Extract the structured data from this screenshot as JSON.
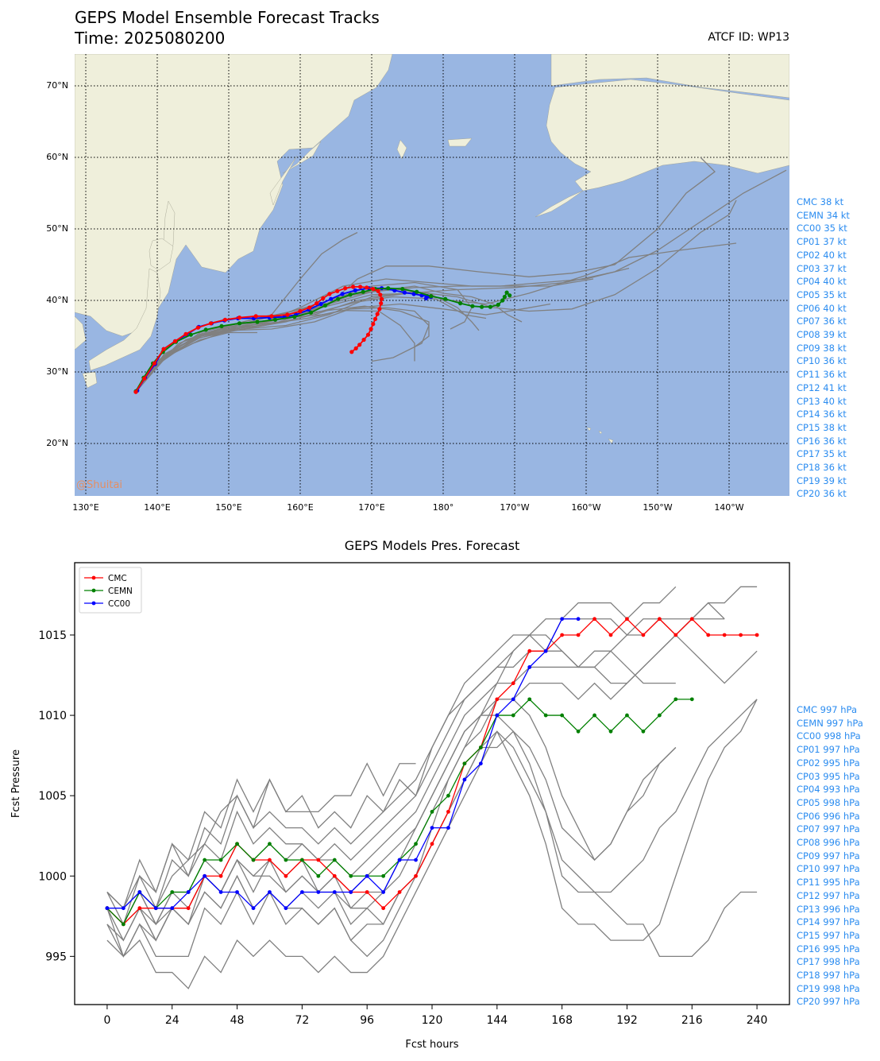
{
  "header": {
    "title": "GEPS Model Ensemble Forecast Tracks",
    "time": "Time: 2025080200",
    "atcf": "ATCF ID: WP13"
  },
  "map": {
    "watermark": "@Shuitai",
    "lat_labels": [
      "70°N",
      "60°N",
      "50°N",
      "40°N",
      "30°N",
      "20°N"
    ],
    "lon_labels": [
      "130°E",
      "140°E",
      "150°E",
      "160°E",
      "170°E",
      "180°",
      "170°W",
      "160°W",
      "150°W",
      "140°W"
    ],
    "colors": {
      "ocean": "#99b6e2",
      "land": "#efefdb",
      "cmc": "#ff0000",
      "cemn": "#008000",
      "cc00": "#0000ff",
      "member": "#808080"
    },
    "tracks": {
      "cmc": [
        [
          137,
          27.2
        ],
        [
          138.2,
          29.1
        ],
        [
          139.6,
          31.2
        ],
        [
          140.9,
          33.2
        ],
        [
          142.5,
          34.3
        ],
        [
          144,
          35.3
        ],
        [
          145.7,
          36.2
        ],
        [
          147.5,
          36.8
        ],
        [
          149.5,
          37.3
        ],
        [
          151.5,
          37.6
        ],
        [
          153.8,
          37.8
        ],
        [
          156,
          37.8
        ],
        [
          158.2,
          38
        ],
        [
          160,
          38.5
        ],
        [
          161.3,
          39
        ],
        [
          162.3,
          39.6
        ],
        [
          163.2,
          40.3
        ],
        [
          164.1,
          40.9
        ],
        [
          165.2,
          41.3
        ],
        [
          166.3,
          41.7
        ],
        [
          167.4,
          41.9
        ],
        [
          168.4,
          41.9
        ],
        [
          169.3,
          41.8
        ],
        [
          170.2,
          41.6
        ],
        [
          170.9,
          41.3
        ],
        [
          171.2,
          40.8
        ],
        [
          171.4,
          40.2
        ],
        [
          171.3,
          39.6
        ],
        [
          171.1,
          38.8
        ],
        [
          170.8,
          38.1
        ],
        [
          170.5,
          37.4
        ],
        [
          170.2,
          36.7
        ],
        [
          169.9,
          36
        ],
        [
          169.5,
          35.2
        ],
        [
          168.9,
          34.5
        ],
        [
          168.3,
          33.8
        ],
        [
          167.8,
          33.3
        ],
        [
          167.2,
          32.8
        ]
      ],
      "cemn": [
        [
          137,
          27.3
        ],
        [
          138.1,
          29.2
        ],
        [
          139.4,
          31.2
        ],
        [
          140.8,
          32.8
        ],
        [
          142.6,
          34.2
        ],
        [
          144.7,
          35.2
        ],
        [
          146.8,
          35.9
        ],
        [
          149,
          36.4
        ],
        [
          151.5,
          36.8
        ],
        [
          154,
          37
        ],
        [
          156.5,
          37.3
        ],
        [
          159.2,
          37.7
        ],
        [
          161.5,
          38.3
        ],
        [
          163.5,
          39.3
        ],
        [
          165.3,
          40.2
        ],
        [
          167,
          40.8
        ],
        [
          168.8,
          41.2
        ],
        [
          170.5,
          41.6
        ],
        [
          172.3,
          41.7
        ],
        [
          174.3,
          41.6
        ],
        [
          176.3,
          41.2
        ],
        [
          178.3,
          40.6
        ],
        [
          180.3,
          40.2
        ],
        [
          182.4,
          39.6
        ],
        [
          184.1,
          39.2
        ],
        [
          185.4,
          39.1
        ],
        [
          186.6,
          39.1
        ],
        [
          187.7,
          39.4
        ],
        [
          188.3,
          40
        ],
        [
          188.6,
          40.5
        ],
        [
          188.9,
          41.1
        ],
        [
          189.3,
          40.7
        ]
      ],
      "cc00": [
        [
          137.2,
          27.4
        ],
        [
          138.3,
          29.2
        ],
        [
          139.7,
          31.1
        ],
        [
          140.9,
          33.2
        ],
        [
          142.5,
          34.3
        ],
        [
          144.1,
          35.2
        ],
        [
          145.8,
          36.3
        ],
        [
          147.6,
          36.8
        ],
        [
          149.4,
          37.2
        ],
        [
          151.3,
          37.5
        ],
        [
          153.5,
          37.5
        ],
        [
          155.7,
          37.6
        ],
        [
          157.8,
          37.7
        ],
        [
          159.4,
          38
        ],
        [
          161.2,
          38.7
        ],
        [
          162.9,
          39.5
        ],
        [
          164.3,
          40.2
        ],
        [
          165.9,
          40.9
        ],
        [
          167.7,
          41.4
        ],
        [
          169.6,
          41.7
        ],
        [
          171.4,
          41.7
        ],
        [
          173.2,
          41.4
        ],
        [
          174.6,
          41.1
        ],
        [
          175.9,
          40.9
        ],
        [
          177,
          40.7
        ],
        [
          177.8,
          40.6
        ],
        [
          178.3,
          40.5
        ],
        [
          177.6,
          40.3
        ]
      ]
    }
  },
  "ensemble_labels_intensity": [
    "CMC 38 kt",
    "CEMN 34 kt",
    "CC00 35 kt",
    "CP01 37 kt",
    "CP02 40 kt",
    "CP03 37 kt",
    "CP04 40 kt",
    "CP05 35 kt",
    "CP06 40 kt",
    "CP07 36 kt",
    "CP08 39 kt",
    "CP09 38 kt",
    "CP10 36 kt",
    "CP11 36 kt",
    "CP12 41 kt",
    "CP13 40 kt",
    "CP14 36 kt",
    "CP15 38 kt",
    "CP16 36 kt",
    "CP17 35 kt",
    "CP18 36 kt",
    "CP19 39 kt",
    "CP20 36 kt"
  ],
  "ensemble_labels_pressure": [
    "CMC 997 hPa",
    "CEMN 997 hPa",
    "CC00 998 hPa",
    "CP01 997 hPa",
    "CP02 995 hPa",
    "CP03 995 hPa",
    "CP04 993 hPa",
    "CP05 998 hPa",
    "CP06 996 hPa",
    "CP07 997 hPa",
    "CP08 996 hPa",
    "CP09 997 hPa",
    "CP10 997 hPa",
    "CP11 995 hPa",
    "CP12 997 hPa",
    "CP13 996 hPa",
    "CP14 997 hPa",
    "CP15 997 hPa",
    "CP16 995 hPa",
    "CP17 998 hPa",
    "CP18 997 hPa",
    "CP19 998 hPa",
    "CP20 997 hPa"
  ],
  "chart_data": {
    "type": "line",
    "title": "GEPS Models Pres. Forecast",
    "xlabel": "Fcst hours",
    "ylabel": "Fcst Pressure",
    "xlim": [
      -12,
      252
    ],
    "ylim": [
      992,
      1019.5
    ],
    "xticks": [
      0,
      24,
      48,
      72,
      96,
      120,
      144,
      168,
      192,
      216,
      240
    ],
    "yticks": [
      995,
      1000,
      1005,
      1010,
      1015
    ],
    "legend_position": "upper-left",
    "series": [
      {
        "name": "CMC",
        "color": "#ff0000",
        "x": [
          0,
          6,
          12,
          18,
          24,
          30,
          36,
          42,
          48,
          54,
          60,
          66,
          72,
          78,
          84,
          90,
          96,
          102,
          108,
          114,
          120,
          126,
          132,
          138,
          144,
          150,
          156,
          162,
          168,
          174,
          180,
          186,
          192,
          198,
          204,
          210,
          216,
          222,
          228,
          234,
          240
        ],
        "values": [
          998,
          997,
          998,
          998,
          998,
          998,
          1000,
          1000,
          1002,
          1001,
          1001,
          1000,
          1001,
          1001,
          1000,
          999,
          999,
          998,
          999,
          1000,
          1002,
          1004,
          1007,
          1008,
          1011,
          1012,
          1014,
          1014,
          1015,
          1015,
          1016,
          1015,
          1016,
          1015,
          1016,
          1015,
          1016,
          1015,
          1015,
          1015,
          1015
        ]
      },
      {
        "name": "CEMN",
        "color": "#008000",
        "x": [
          0,
          6,
          12,
          18,
          24,
          30,
          36,
          42,
          48,
          54,
          60,
          66,
          72,
          78,
          84,
          90,
          96,
          102,
          108,
          114,
          120,
          126,
          132,
          138,
          144,
          150,
          156,
          162,
          168,
          174,
          180,
          186,
          192,
          198,
          204,
          210,
          216
        ],
        "values": [
          998,
          997,
          999,
          998,
          999,
          999,
          1001,
          1001,
          1002,
          1001,
          1002,
          1001,
          1001,
          1000,
          1001,
          1000,
          1000,
          1000,
          1001,
          1002,
          1004,
          1005,
          1007,
          1008,
          1010,
          1010,
          1011,
          1010,
          1010,
          1009,
          1010,
          1009,
          1010,
          1009,
          1010,
          1011,
          1011
        ]
      },
      {
        "name": "CC00",
        "color": "#0000ff",
        "x": [
          0,
          6,
          12,
          18,
          24,
          30,
          36,
          42,
          48,
          54,
          60,
          66,
          72,
          78,
          84,
          90,
          96,
          102,
          108,
          114,
          120,
          126,
          132,
          138,
          144,
          150,
          156,
          162,
          168,
          174
        ],
        "values": [
          998,
          998,
          999,
          998,
          998,
          999,
          1000,
          999,
          999,
          998,
          999,
          998,
          999,
          999,
          999,
          999,
          1000,
          999,
          1001,
          1001,
          1003,
          1003,
          1006,
          1007,
          1010,
          1011,
          1013,
          1014,
          1016,
          1016
        ]
      }
    ]
  }
}
